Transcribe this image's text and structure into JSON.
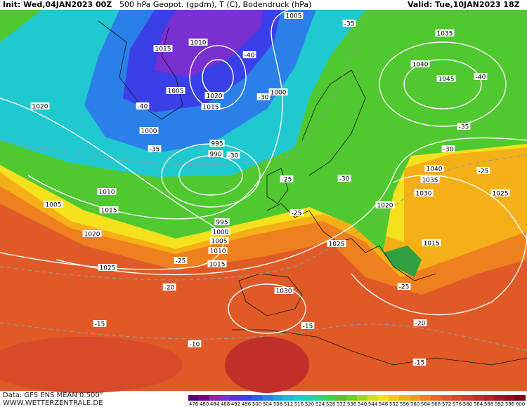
{
  "header": {
    "init": "Init: Wed,04JAN2023 00Z",
    "title": "500 hPa Geopot. (gpdm), T (C), Bodendruck (hPa)",
    "valid": "Valid: Tue,10JAN2023 18Z"
  },
  "footer": {
    "data": "Data: GFS ENS MEAN 0.500°",
    "site": "WWW.WETTERZENTRALE.DE"
  },
  "colorbar": {
    "labels": [
      476,
      480,
      484,
      488,
      492,
      496,
      500,
      504,
      508,
      512,
      516,
      520,
      524,
      528,
      532,
      536,
      540,
      544,
      548,
      552,
      556,
      560,
      564,
      568,
      572,
      576,
      580,
      584,
      588,
      592,
      596,
      600
    ],
    "colors": [
      "#5a007a",
      "#7a0090",
      "#9a20b0",
      "#7a30d0",
      "#5a30e0",
      "#3a40e8",
      "#2a60e8",
      "#2a80e8",
      "#20a0e8",
      "#20b8e0",
      "#20c8d0",
      "#20d0b0",
      "#30d080",
      "#40d050",
      "#50c830",
      "#70d020",
      "#a0d820",
      "#d0e020",
      "#f5e11c",
      "#f5c818",
      "#f5b018",
      "#f29a1e",
      "#ee8020",
      "#e86a24",
      "#e05a28",
      "#d84a28",
      "#cc3c28",
      "#c03028",
      "#b02428",
      "#a01828",
      "#900c20",
      "#800018"
    ]
  },
  "pressure_labels": [
    1005,
    1015,
    1010,
    1020,
    1005,
    1020,
    1015,
    1000,
    1000,
    995,
    990,
    1010,
    1005,
    1015,
    1020,
    995,
    1000,
    1005,
    1010,
    1015,
    1025,
    1030,
    1025,
    1020,
    1035,
    1040,
    1045,
    1040,
    1035,
    1030,
    1025,
    1015
  ],
  "temperature_labels": [
    -35,
    -40,
    -40,
    -30,
    -35,
    -30,
    -25,
    -30,
    -25,
    -25,
    -20,
    -15,
    -10,
    -15,
    -25,
    -20,
    -15,
    -40,
    -35,
    -30,
    -25
  ]
}
